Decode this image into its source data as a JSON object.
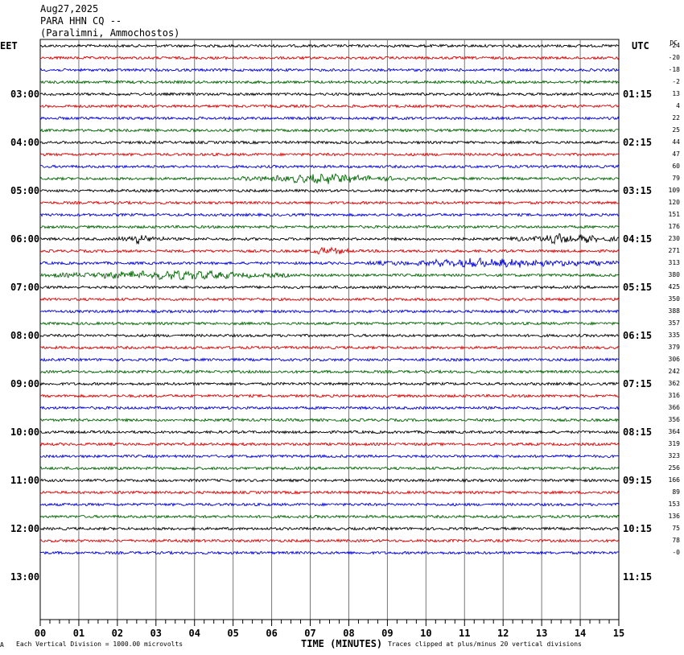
{
  "header": {
    "date": "Aug27,2025",
    "station": "PARA HHN CQ --",
    "location": "(Paralimni, Ammochostos)"
  },
  "left_tz": "EET",
  "right_tz": "UTC",
  "dc_label": "DC",
  "footer": {
    "marker": "A",
    "scale_note": "Each Vertical Division = 1000.00 microvolts",
    "clip_note": "Traces clipped at plus/minus 20 vertical divisions"
  },
  "chart_data": {
    "type": "line",
    "title": "Aug27,2025 PARA HHN CQ -- (Paralimni, Ammochostos)",
    "xlabel": "TIME (MINUTES)",
    "xlim": [
      0,
      15
    ],
    "x_ticks": [
      "00",
      "01",
      "02",
      "03",
      "04",
      "05",
      "06",
      "07",
      "08",
      "09",
      "10",
      "11",
      "12",
      "13",
      "14",
      "15"
    ],
    "rows_per_hour": 4,
    "left_hour_labels": [
      "03:00",
      "04:00",
      "05:00",
      "06:00",
      "07:00",
      "08:00",
      "09:00",
      "10:00",
      "11:00",
      "12:00",
      "13:00"
    ],
    "right_hour_labels": [
      "01:15",
      "02:15",
      "03:15",
      "04:15",
      "05:15",
      "06:15",
      "07:15",
      "08:15",
      "09:15",
      "10:15",
      "11:15"
    ],
    "dc_offsets": [
      "-24",
      "-20",
      "-18",
      "-2",
      "13",
      "4",
      "22",
      "25",
      "44",
      "47",
      "60",
      "79",
      "109",
      "120",
      "151",
      "176",
      "230",
      "271",
      "313",
      "380",
      "425",
      "350",
      "388",
      "357",
      "335",
      "379",
      "306",
      "242",
      "362",
      "316",
      "366",
      "356",
      "364",
      "319",
      "323",
      "256",
      "166",
      "89",
      "153",
      "136",
      "75",
      "78",
      "-0"
    ],
    "trace_colors": [
      "#000000",
      "#dd0000",
      "#0000dd",
      "#006600"
    ],
    "event_minutes": [
      {
        "row": 11,
        "start": 5.2,
        "end": 9.5
      },
      {
        "row": 16,
        "start": 2.0,
        "end": 3.2
      },
      {
        "row": 16,
        "start": 12.2,
        "end": 15.0
      },
      {
        "row": 17,
        "start": 7.0,
        "end": 8.0
      },
      {
        "row": 18,
        "start": 8.5,
        "end": 15.0
      },
      {
        "row": 19,
        "start": 0.2,
        "end": 6.5
      }
    ],
    "grid": true
  }
}
